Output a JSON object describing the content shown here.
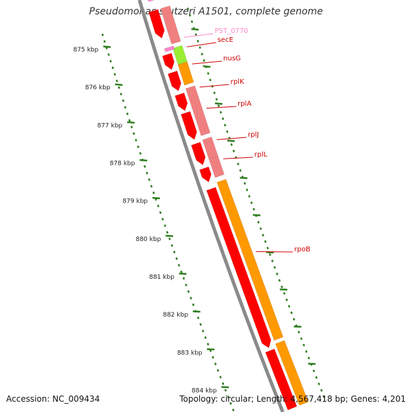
{
  "title": "Pseudomonas stutzeri A1501, complete genome",
  "footer": {
    "accession": "Accession: NC_009434",
    "summary": "Topology: circular; Length: 4,567,418 bp; Genes: 4,201"
  },
  "colors": {
    "backbone": "#8a8a8a",
    "tick": "#2e7d1f",
    "cds": "#ff0000",
    "gene": "#f08080",
    "rrna": "#ff9900",
    "misc": "#99ee33",
    "pseudo": "#ff88cc",
    "label": "#cc0000"
  },
  "ruler": {
    "labels": [
      "875 kbp",
      "876 kbp",
      "877 kbp",
      "878 kbp",
      "879 kbp",
      "880 kbp",
      "881 kbp",
      "882 kbp",
      "883 kbp",
      "884 kbp"
    ]
  },
  "genes": [
    {
      "name": "PST_0770",
      "color": "pseudo"
    },
    {
      "name": "secE",
      "color": "label"
    },
    {
      "name": "nusG",
      "color": "label"
    },
    {
      "name": "rplK",
      "color": "label"
    },
    {
      "name": "rplA",
      "color": "label"
    },
    {
      "name": "rplJ",
      "color": "label"
    },
    {
      "name": "rplL",
      "color": "label"
    },
    {
      "name": "rpoB",
      "color": "label"
    }
  ]
}
